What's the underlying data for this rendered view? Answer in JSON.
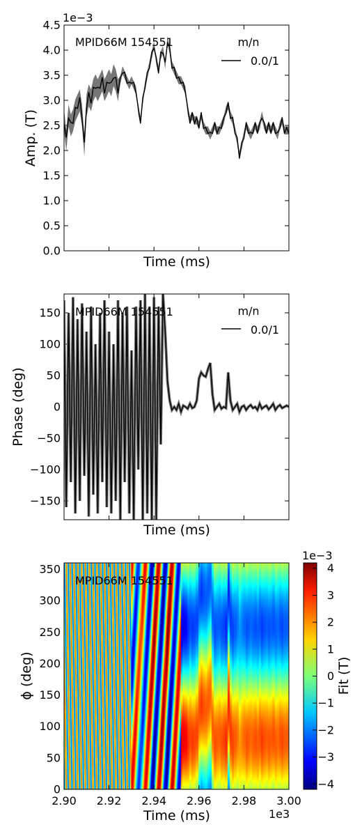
{
  "chart_data": [
    {
      "type": "line",
      "annotation": "MPID66M 154551",
      "xlabel": "Time (ms)",
      "ylabel": "Amp. (T)",
      "y_offset_label": "1e−3",
      "xlim": [
        2900,
        3000
      ],
      "ylim": [
        0.0,
        4.5
      ],
      "yticks": [
        "0.0",
        "0.5",
        "1.0",
        "1.5",
        "2.0",
        "2.5",
        "3.0",
        "3.5",
        "4.0",
        "4.5"
      ],
      "legend": {
        "title": "m/n",
        "position": "top-right"
      },
      "series": [
        {
          "name": "0.0/1",
          "color": "#000000",
          "band_color": "#777777",
          "x": [
            2900,
            2901,
            2902,
            2903,
            2904,
            2905,
            2906,
            2907,
            2908,
            2909,
            2910,
            2911,
            2912,
            2913,
            2914,
            2915,
            2916,
            2917,
            2918,
            2919,
            2920,
            2921,
            2922,
            2923,
            2924,
            2925,
            2926,
            2927,
            2928,
            2929,
            2930,
            2931,
            2932,
            2933,
            2934,
            2935,
            2936,
            2937,
            2938,
            2939,
            2940,
            2941,
            2942,
            2943,
            2944,
            2945,
            2946,
            2947,
            2948,
            2949,
            2950,
            2951,
            2952,
            2953,
            2954,
            2955,
            2956,
            2957,
            2958,
            2959,
            2960,
            2961,
            2962,
            2963,
            2964,
            2965,
            2966,
            2967,
            2968,
            2969,
            2970,
            2971,
            2972,
            2973,
            2974,
            2975,
            2976,
            2977,
            2978,
            2979,
            2980,
            2981,
            2982,
            2983,
            2984,
            2985,
            2986,
            2987,
            2988,
            2989,
            2990,
            2991,
            2992,
            2993,
            2994,
            2995,
            2996,
            2997,
            2998,
            2999,
            3000
          ],
          "values": [
            2.6,
            2.2,
            2.7,
            2.5,
            2.6,
            2.8,
            2.9,
            3.0,
            2.7,
            2.1,
            2.9,
            3.1,
            3.0,
            3.2,
            3.3,
            3.2,
            3.3,
            3.4,
            3.2,
            3.3,
            3.4,
            3.3,
            3.5,
            3.4,
            3.2,
            3.4,
            3.6,
            3.5,
            3.4,
            3.3,
            3.4,
            3.3,
            3.2,
            2.8,
            2.6,
            3.0,
            3.3,
            3.5,
            3.7,
            3.9,
            4.1,
            3.8,
            3.6,
            3.9,
            4.0,
            3.7,
            4.2,
            4.0,
            3.7,
            3.6,
            3.5,
            3.4,
            3.4,
            3.3,
            3.2,
            2.8,
            2.6,
            2.7,
            2.6,
            2.6,
            2.5,
            2.7,
            2.5,
            2.4,
            2.4,
            2.3,
            2.4,
            2.5,
            2.4,
            2.4,
            2.5,
            2.6,
            2.8,
            2.9,
            2.7,
            2.6,
            2.4,
            2.2,
            1.9,
            2.1,
            2.3,
            2.5,
            2.4,
            2.3,
            2.4,
            2.5,
            2.4,
            2.5,
            2.7,
            2.5,
            2.4,
            2.5,
            2.4,
            2.5,
            2.4,
            2.3,
            2.5,
            2.6,
            2.4,
            2.4,
            2.4
          ]
        }
      ]
    },
    {
      "type": "line",
      "annotation": "MPID66M 154551",
      "xlabel": "Time (ms)",
      "ylabel": "Phase (deg)",
      "xlim": [
        2900,
        3000
      ],
      "ylim": [
        -180,
        180
      ],
      "yticks": [
        "−150",
        "−100",
        "−50",
        "0",
        "50",
        "100",
        "150"
      ],
      "legend": {
        "title": "m/n",
        "position": "top-right"
      },
      "series": [
        {
          "name": "0.0/1",
          "color": "#000000",
          "band_color": "#777777",
          "x": [
            2900,
            2901,
            2902,
            2903,
            2904,
            2905,
            2906,
            2907,
            2908,
            2909,
            2910,
            2911,
            2912,
            2913,
            2914,
            2915,
            2916,
            2917,
            2918,
            2919,
            2920,
            2921,
            2922,
            2923,
            2924,
            2925,
            2926,
            2927,
            2928,
            2929,
            2930,
            2931,
            2932,
            2933,
            2934,
            2935,
            2936,
            2937,
            2938,
            2939,
            2940,
            2941,
            2942,
            2943,
            2944,
            2945,
            2946,
            2947,
            2948,
            2949,
            2950,
            2951,
            2952,
            2953,
            2954,
            2955,
            2956,
            2957,
            2958,
            2959,
            2960,
            2961,
            2962,
            2963,
            2964,
            2965,
            2966,
            2967,
            2968,
            2969,
            2970,
            2971,
            2972,
            2973,
            2974,
            2975,
            2976,
            2977,
            2978,
            2979,
            2980,
            2981,
            2982,
            2983,
            2984,
            2985,
            2986,
            2987,
            2988,
            2989,
            2990,
            2991,
            2992,
            2993,
            2994,
            2995,
            2996,
            2997,
            2998,
            2999,
            3000
          ],
          "values": [
            170,
            -160,
            150,
            -120,
            175,
            -170,
            140,
            -150,
            165,
            -110,
            120,
            -175,
            160,
            -140,
            100,
            -170,
            150,
            -120,
            170,
            -160,
            120,
            -170,
            100,
            -150,
            170,
            -180,
            150,
            -120,
            160,
            -170,
            90,
            -180,
            160,
            -100,
            170,
            -180,
            180,
            -170,
            160,
            -180,
            175,
            -180,
            160,
            -60,
            180,
            120,
            40,
            10,
            -5,
            0,
            -5,
            5,
            -8,
            2,
            0,
            -3,
            5,
            -2,
            0,
            10,
            45,
            55,
            50,
            48,
            60,
            70,
            20,
            -5,
            0,
            5,
            -3,
            0,
            -2,
            55,
            10,
            -5,
            0,
            5,
            -8,
            0,
            2,
            -5,
            0,
            3,
            -2,
            0,
            -5,
            5,
            -3,
            0,
            2,
            -4,
            0,
            5,
            -5,
            0,
            3,
            -2,
            0,
            2,
            0
          ]
        }
      ]
    },
    {
      "type": "heatmap",
      "annotation": "MPID66M 154551",
      "xlabel": "Time (ms)",
      "ylabel": "ϕ (deg)",
      "x_offset_label": "1e3",
      "xlim": [
        2900,
        3000
      ],
      "ylim": [
        0,
        360
      ],
      "xticks": [
        "2.90",
        "2.92",
        "2.94",
        "2.96",
        "2.98",
        "3.00"
      ],
      "yticks": [
        "0",
        "50",
        "100",
        "150",
        "200",
        "250",
        "300",
        "350"
      ],
      "colorbar": {
        "label": "Fit (T)",
        "offset_label": "1e−3",
        "range": [
          -4.2,
          4.2
        ],
        "ticks": [
          "−4",
          "−3",
          "−2",
          "−1",
          "0",
          "1",
          "2",
          "3",
          "4"
        ],
        "colormap": "jet"
      }
    }
  ]
}
